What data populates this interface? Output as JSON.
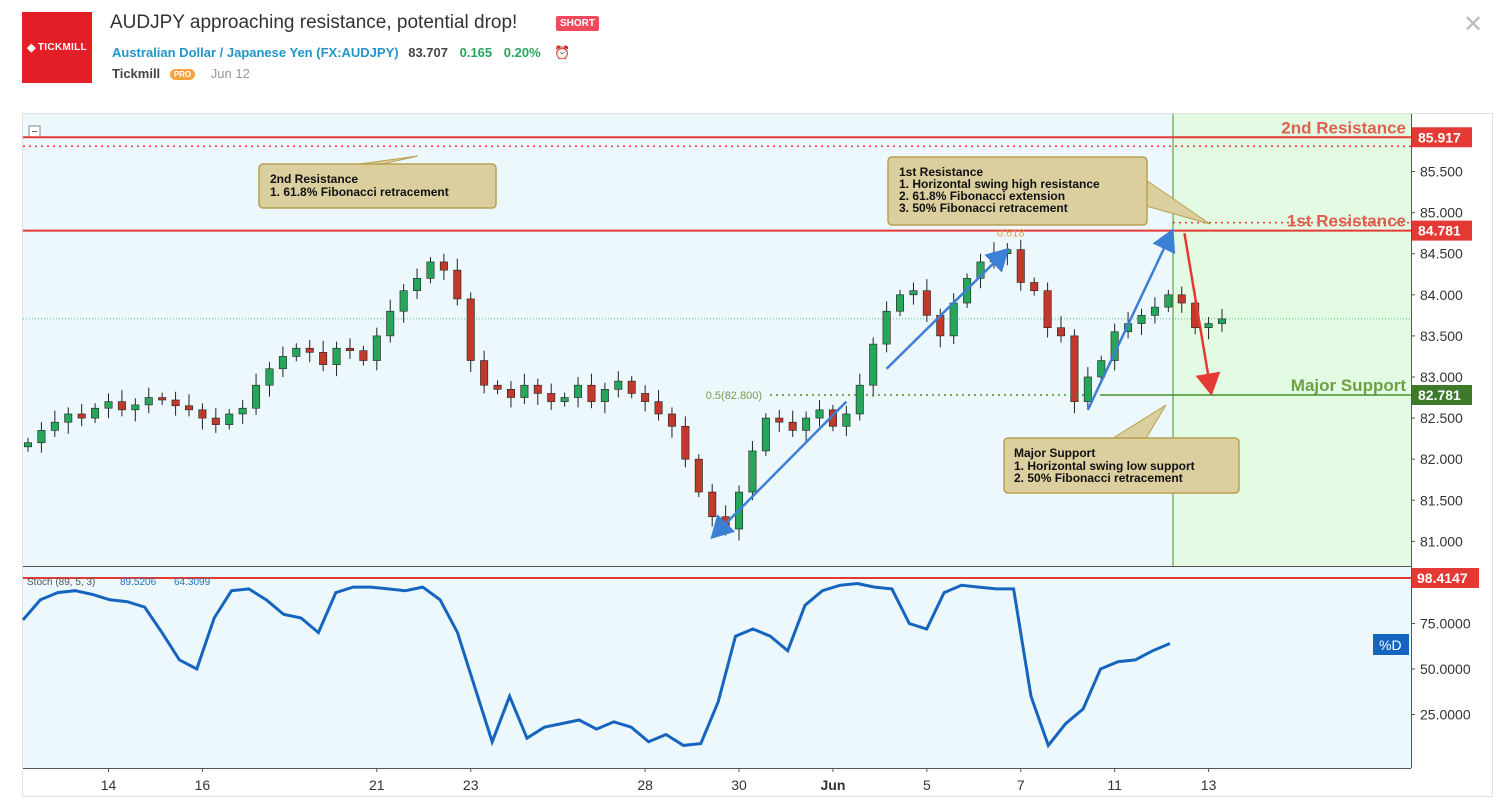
{
  "header": {
    "logo_text": "TICKMILL",
    "title": "AUDJPY approaching resistance, potential drop!",
    "badge": "SHORT",
    "symbol_name": "Australian Dollar / Japanese Yen",
    "symbol_code": "(FX:AUDJPY)",
    "price": "83.707",
    "change": "0.165",
    "change_pct": "0.20%",
    "author": "Tickmill",
    "author_badge": "PRO",
    "date": "Jun 12"
  },
  "colors": {
    "resistance": "#e53935",
    "support": "#4a8f30",
    "up_candle": "#26a65b",
    "down_candle": "#c0392b",
    "arrow_blue": "#3c7fd6",
    "stoch_line": "#1565c0",
    "forecast_zone": "#e3fbe3",
    "callout_fill": "#dccf9f",
    "callout_border": "#b9a050"
  },
  "chart_data": {
    "type": "candlestick",
    "symbol": "AUDJPY",
    "ylim": [
      80.7,
      86.2
    ],
    "y_ticks": [
      "81.000",
      "81.500",
      "82.000",
      "82.500",
      "83.000",
      "83.500",
      "84.000",
      "84.500",
      "85.000",
      "85.500"
    ],
    "x_ticks": [
      {
        "label": "14",
        "bar": 6
      },
      {
        "label": "16",
        "bar": 13
      },
      {
        "label": "21",
        "bar": 26
      },
      {
        "label": "23",
        "bar": 33
      },
      {
        "label": "28",
        "bar": 46
      },
      {
        "label": "30",
        "bar": 53
      },
      {
        "label": "Jun",
        "bar": 60
      },
      {
        "label": "5",
        "bar": 67
      },
      {
        "label": "7",
        "bar": 74
      },
      {
        "label": "11",
        "bar": 81
      },
      {
        "label": "13",
        "bar": 88
      }
    ],
    "closes": [
      82.2,
      82.35,
      82.45,
      82.55,
      82.5,
      82.62,
      82.7,
      82.6,
      82.66,
      82.75,
      82.72,
      82.65,
      82.6,
      82.5,
      82.42,
      82.55,
      82.62,
      82.9,
      83.1,
      83.25,
      83.35,
      83.3,
      83.15,
      83.35,
      83.32,
      83.2,
      83.5,
      83.8,
      84.05,
      84.2,
      84.4,
      84.3,
      83.95,
      83.2,
      82.9,
      82.85,
      82.75,
      82.9,
      82.8,
      82.7,
      82.75,
      82.9,
      82.7,
      82.85,
      82.95,
      82.8,
      82.7,
      82.55,
      82.4,
      82.0,
      81.6,
      81.3,
      81.15,
      81.6,
      82.1,
      82.5,
      82.45,
      82.35,
      82.5,
      82.6,
      82.4,
      82.55,
      82.9,
      83.4,
      83.8,
      84.0,
      84.05,
      83.75,
      83.5,
      83.9,
      84.2,
      84.4,
      84.5,
      84.55,
      84.15,
      84.05,
      83.6,
      83.5,
      82.7,
      83.0,
      83.2,
      83.55,
      83.65,
      83.75,
      83.85,
      84.0,
      83.9,
      83.6,
      83.65,
      83.707
    ],
    "series": [
      {
        "name": "Stoch (89, 5, 3)",
        "values": [
          77,
          88,
          92,
          93,
          91,
          88,
          87,
          84,
          70,
          55,
          50,
          78,
          93,
          94,
          88,
          80,
          78,
          70,
          92,
          95,
          95,
          94,
          93,
          95,
          88,
          70,
          40,
          10,
          35,
          12,
          18,
          20,
          22,
          17,
          21,
          18,
          10,
          14,
          8,
          9,
          32,
          68,
          72,
          68,
          60,
          85,
          93,
          96,
          97,
          95,
          94,
          75,
          72,
          92,
          96,
          95,
          94,
          94,
          35,
          8,
          20,
          28,
          50,
          54,
          55,
          60,
          64
        ]
      }
    ],
    "stoch_label": "Stoch (89, 5, 3)",
    "stoch_k": "89.5206",
    "stoch_d": "64.3099",
    "stoch_ylim": [
      0,
      100
    ],
    "stoch_ticks": [
      "25.0000",
      "50.0000",
      "75.0000"
    ],
    "stoch_level": "98.4147",
    "stoch_d_label": "%D",
    "levels": [
      {
        "name": "2nd Resistance",
        "value": 85.917,
        "label": "85.917"
      },
      {
        "name": "1st Resistance",
        "value": 84.781,
        "label": "84.781"
      },
      {
        "name": "Major Support",
        "value": 82.781,
        "label": "82.781"
      }
    ],
    "fib_labels": {
      "fib_618": "0.618",
      "fib_50": "0.5(82.800)"
    },
    "callouts": [
      {
        "title": "2nd Resistance",
        "lines": [
          "1. 61.8% Fibonacci retracement"
        ]
      },
      {
        "title": "1st Resistance",
        "lines": [
          "1. Horizontal swing high resistance",
          "2. 61.8% Fibonacci extension",
          "3. 50% Fibonacci retracement"
        ]
      },
      {
        "title": "Major Support",
        "lines": [
          "1. Horizontal swing low support",
          "2. 50% Fibonacci retracement"
        ]
      }
    ]
  }
}
